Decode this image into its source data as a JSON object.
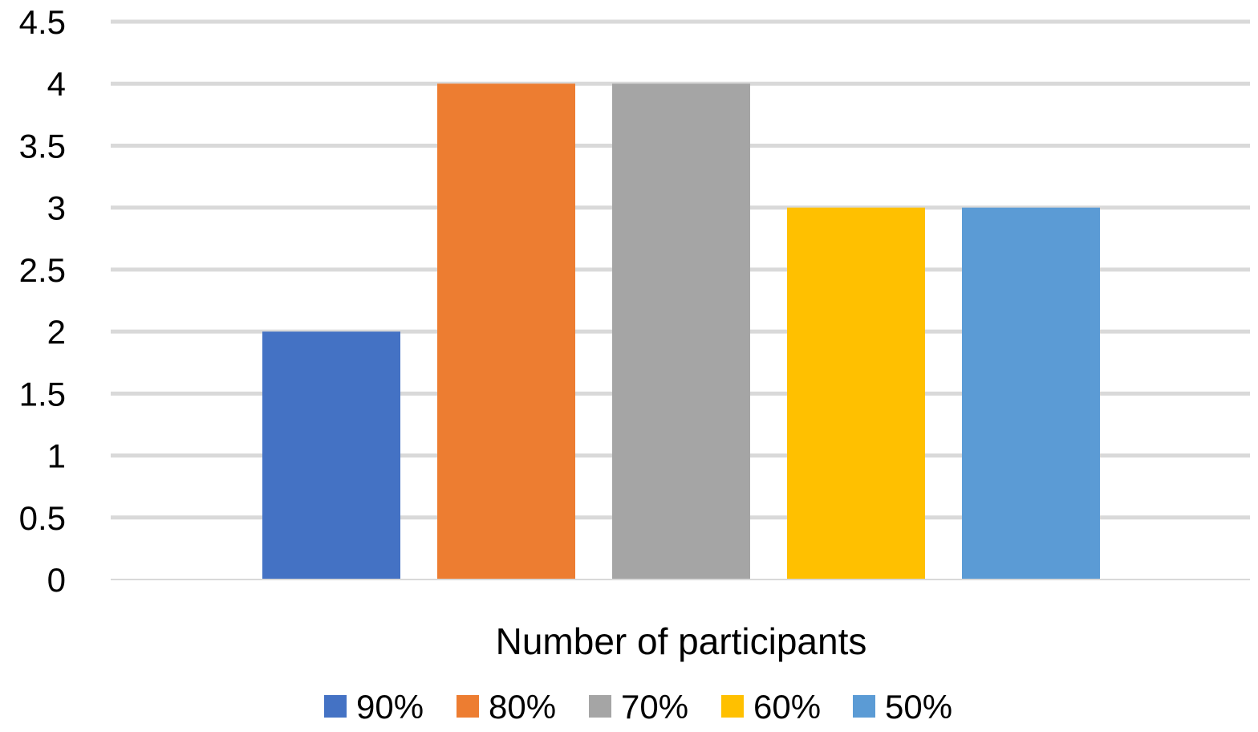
{
  "chart_data": {
    "type": "bar",
    "categories": [
      "Number of participants"
    ],
    "series": [
      {
        "name": "90%",
        "values": [
          2
        ],
        "color": "#4472C4"
      },
      {
        "name": "80%",
        "values": [
          4
        ],
        "color": "#ED7D31"
      },
      {
        "name": "70%",
        "values": [
          4
        ],
        "color": "#A5A5A5"
      },
      {
        "name": "60%",
        "values": [
          3
        ],
        "color": "#FFC000"
      },
      {
        "name": "50%",
        "values": [
          3
        ],
        "color": "#5B9BD5"
      }
    ],
    "title": "",
    "xlabel": "",
    "ylabel": "",
    "ylim": [
      0,
      4.5
    ],
    "yticks": [
      "0",
      "0.5",
      "1",
      "1.5",
      "2",
      "2.5",
      "3",
      "3.5",
      "4",
      "4.5"
    ],
    "grid": true,
    "gridline_color": "#D9D9D9",
    "legend_position": "bottom"
  }
}
